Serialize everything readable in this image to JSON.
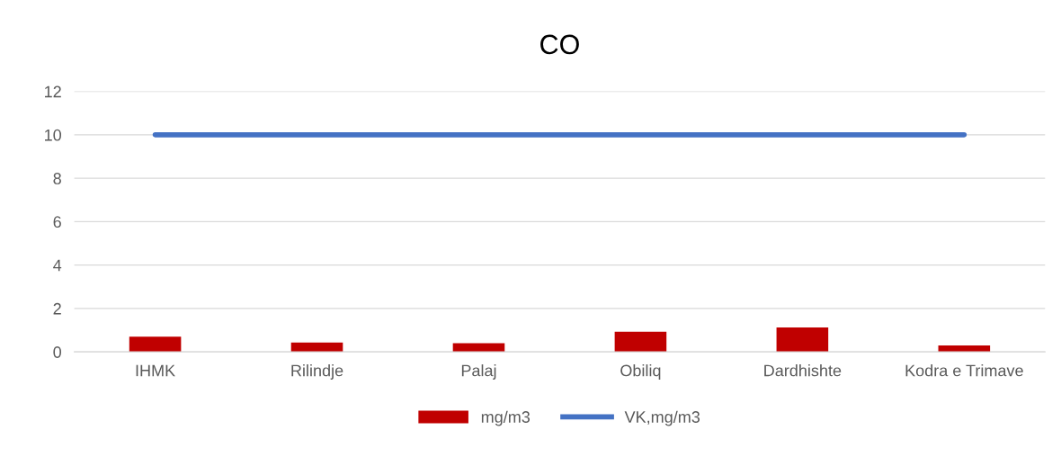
{
  "chart_data": {
    "type": "bar",
    "title": "CO",
    "categories": [
      "IHMK",
      "Rilindje",
      "Palaj",
      "Obiliq",
      "Dardhishte",
      "Kodra e Trimave"
    ],
    "series": [
      {
        "name": "mg/m3",
        "color": "#c00000",
        "values": [
          0.7,
          0.43,
          0.4,
          0.93,
          1.13,
          0.3
        ]
      },
      {
        "name": "VK,mg/m3",
        "type": "line",
        "color": "#4472c4",
        "values": [
          10,
          10,
          10,
          10,
          10,
          10
        ]
      }
    ],
    "ylim": [
      0,
      12
    ],
    "yticks": [
      0,
      2,
      4,
      6,
      8,
      10,
      12
    ],
    "grid": "y",
    "legend": "bottom"
  }
}
